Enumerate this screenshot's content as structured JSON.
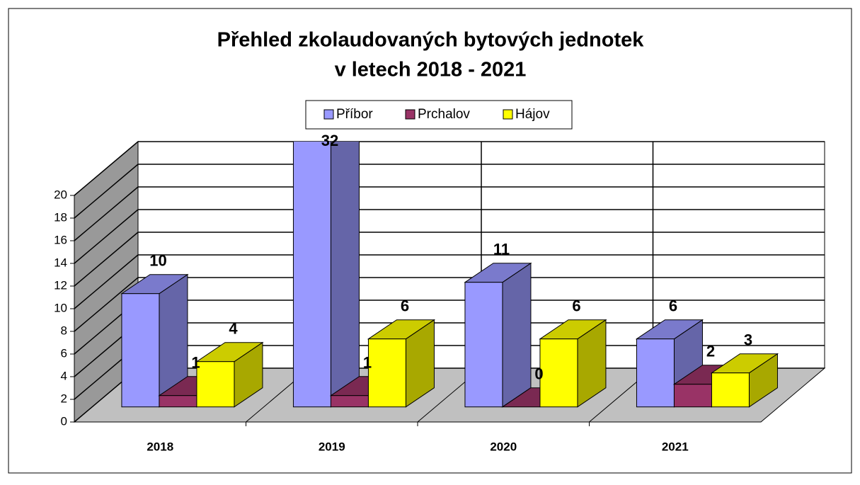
{
  "chart_data": {
    "type": "bar3d",
    "title": [
      "Přehled zkolaudovaných bytových jednotek",
      "v letech 2018 - 2021"
    ],
    "categories": [
      "2018",
      "2019",
      "2020",
      "2021"
    ],
    "series": [
      {
        "name": "Příbor",
        "color": "#9999ff",
        "values": [
          10,
          32,
          11,
          6
        ]
      },
      {
        "name": "Prchalov",
        "color": "#993366",
        "values": [
          1,
          1,
          0,
          2
        ]
      },
      {
        "name": "Hájov",
        "color": "#ffff00",
        "values": [
          4,
          6,
          6,
          3
        ]
      }
    ],
    "ylim": [
      0,
      20
    ],
    "yticks": [
      0,
      2,
      4,
      6,
      8,
      10,
      12,
      14,
      16,
      18,
      20
    ],
    "grid": true
  }
}
